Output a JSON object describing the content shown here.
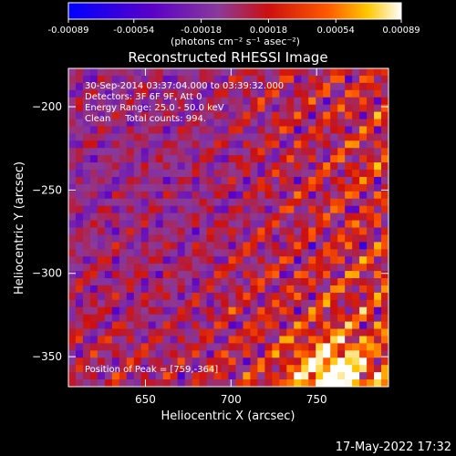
{
  "colorbar": {
    "ticks": [
      "-0.00089",
      "-0.00054",
      "-0.00018",
      "0.00018",
      "0.00054",
      "0.00089"
    ],
    "units_label": "(photons cm⁻² s⁻¹ asec⁻²)",
    "range": [
      -0.00089,
      0.00089
    ]
  },
  "footer": {
    "timestamp": "17-May-2022 17:32"
  },
  "chart_data": {
    "type": "heatmap",
    "title": "Reconstructed RHESSI Image",
    "xlabel": "Heliocentric X (arcsec)",
    "ylabel": "Heliocentric Y (arcsec)",
    "xlim": [
      605,
      792
    ],
    "ylim": [
      -368,
      -177
    ],
    "xticks": [
      650,
      700,
      750
    ],
    "yticks": [
      -200,
      -250,
      -300,
      -350
    ],
    "annotations": [
      "30-Sep-2014 03:37:04.000 to 03:39:32.000",
      "Detectors: 3F 6F 9F, Att 0",
      "Energy Range: 25.0 - 50.0 keV",
      "Clean     Total counts: 994.",
      "Position of Peak = [759,-364]"
    ],
    "peak": {
      "x": 759,
      "y": -364
    },
    "colormap_stops": [
      "#0000ff",
      "#5a00c8",
      "#8a3a9a",
      "#cc1010",
      "#ff5a00",
      "#ffc800",
      "#ffffff"
    ]
  }
}
